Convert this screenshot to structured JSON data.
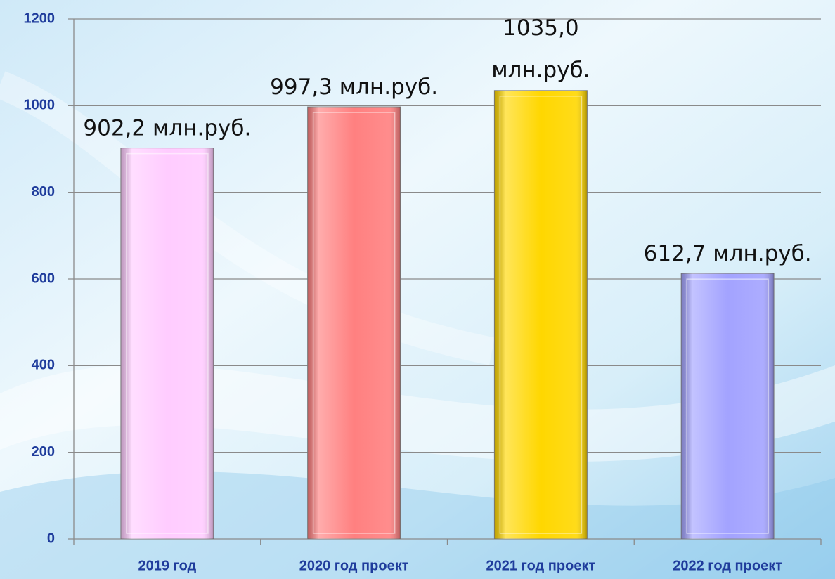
{
  "chart_data": {
    "type": "bar",
    "categories": [
      "2019 год",
      "2020 год проект",
      "2021 год проект",
      "2022 год проект"
    ],
    "values": [
      902.2,
      997.3,
      1035.0,
      612.7
    ],
    "value_labels": [
      "902,2 млн.руб.",
      "997,3 млн.руб.",
      "1035,0\nмлн.руб.",
      "612,7 млн.руб."
    ],
    "colors": [
      "#ffccff",
      "#ff8080",
      "#ffd700",
      "#a3a3ff"
    ],
    "ylim": [
      0,
      1200
    ],
    "yticks": [
      0,
      200,
      400,
      600,
      800,
      1000,
      1200
    ],
    "grid": true
  }
}
